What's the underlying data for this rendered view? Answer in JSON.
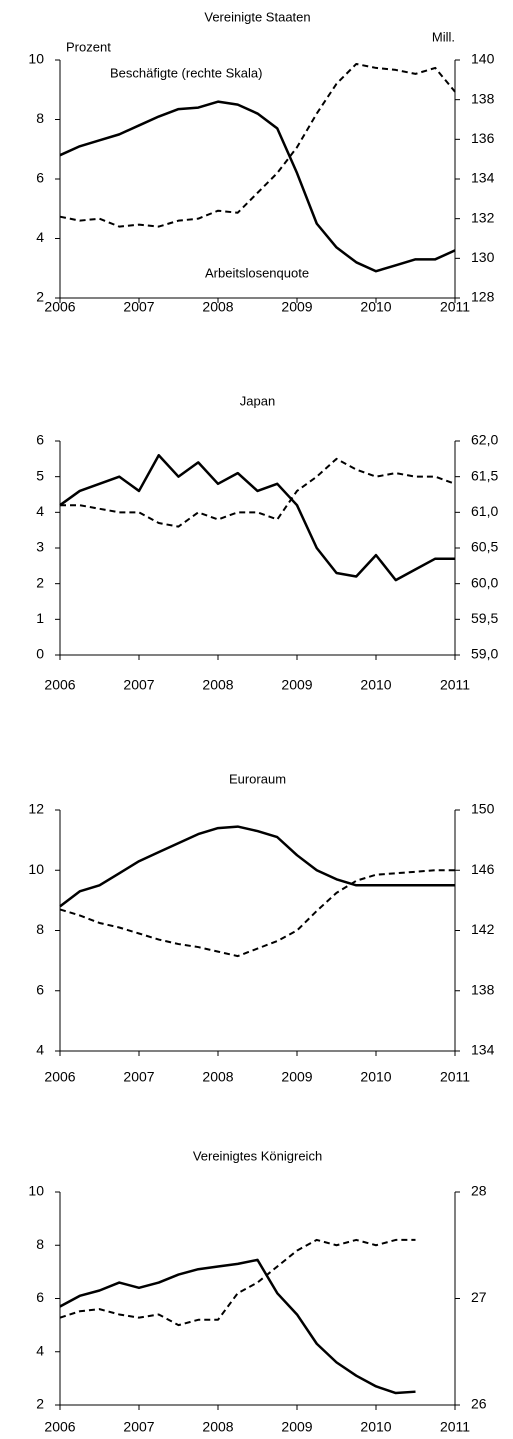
{
  "chart_data": [
    {
      "type": "line",
      "title": "Vereinigte Staaten",
      "annotations": [
        "Prozent",
        "Mill.",
        "Beschäfigte (rechte Skala)",
        "Arbeitslosenquote"
      ],
      "x": [
        2006,
        2006.25,
        2006.5,
        2006.75,
        2007,
        2007.25,
        2007.5,
        2007.75,
        2008,
        2008.25,
        2008.5,
        2008.75,
        2009,
        2009.25,
        2009.5,
        2009.75,
        2010,
        2010.25,
        2010.5,
        2010.75,
        2011
      ],
      "series": [
        {
          "color": "#000000",
          "style": "solid",
          "values": [
            6.8,
            7.1,
            7.3,
            7.5,
            7.8,
            8.1,
            8.35,
            8.4,
            8.6,
            8.5,
            8.2,
            7.7,
            6.2,
            4.5,
            3.7,
            3.2,
            2.9,
            3.1,
            3.3,
            3.3,
            3.6
          ]
        },
        {
          "color": "#000000",
          "style": "dashed",
          "axis": "y2",
          "values": [
            132.1,
            131.9,
            132.0,
            131.6,
            131.7,
            131.6,
            131.9,
            132.0,
            132.4,
            132.3,
            133.3,
            134.3,
            135.6,
            137.3,
            138.8,
            139.8,
            139.6,
            139.5,
            139.3,
            139.6,
            138.4
          ]
        }
      ],
      "xlim": [
        2006,
        2011
      ],
      "xticks": [
        2006,
        2007,
        2008,
        2009,
        2010,
        2011
      ],
      "ylim": [
        2,
        10
      ],
      "yticks": [
        2,
        4,
        6,
        8,
        10
      ],
      "y2lim": [
        128,
        140
      ],
      "y2ticks": [
        128,
        130,
        132,
        134,
        136,
        138,
        140
      ]
    },
    {
      "type": "line",
      "title": "Japan",
      "x": [
        2006,
        2006.25,
        2006.5,
        2006.75,
        2007,
        2007.25,
        2007.5,
        2007.75,
        2008,
        2008.25,
        2008.5,
        2008.75,
        2009,
        2009.25,
        2009.5,
        2009.75,
        2010,
        2010.25,
        2010.5,
        2010.75,
        2011
      ],
      "series": [
        {
          "color": "#000000",
          "style": "solid",
          "values": [
            4.2,
            4.6,
            4.8,
            5.0,
            4.6,
            5.6,
            5.0,
            5.4,
            4.8,
            5.1,
            4.6,
            4.8,
            4.2,
            3.0,
            2.3,
            2.2,
            2.8,
            2.1,
            2.4,
            2.7,
            2.7
          ]
        },
        {
          "color": "#000000",
          "style": "dashed",
          "axis": "y2",
          "values": [
            61.1,
            61.1,
            61.05,
            61.0,
            61.0,
            60.85,
            60.8,
            61.0,
            60.9,
            61.0,
            61.0,
            60.9,
            61.3,
            61.5,
            61.75,
            61.6,
            61.5,
            61.55,
            61.5,
            61.5,
            61.4
          ]
        }
      ],
      "xlim": [
        2006,
        2011
      ],
      "xticks": [
        2006,
        2007,
        2008,
        2009,
        2010,
        2011
      ],
      "ylim": [
        0,
        6
      ],
      "yticks": [
        0,
        1,
        2,
        3,
        4,
        5,
        6
      ],
      "y2lim": [
        59,
        62
      ],
      "y2ticks": [
        {
          "value": 59,
          "label": "59,0"
        },
        {
          "value": 59.5,
          "label": "59,5"
        },
        {
          "value": 60,
          "label": "60,0"
        },
        {
          "value": 60.5,
          "label": "60,5"
        },
        {
          "value": 61,
          "label": "61,0"
        },
        {
          "value": 61.5,
          "label": "61,5"
        },
        {
          "value": 62,
          "label": "62,0"
        }
      ]
    },
    {
      "type": "line",
      "title": "Euroraum",
      "x": [
        2006,
        2006.25,
        2006.5,
        2006.75,
        2007,
        2007.25,
        2007.5,
        2007.75,
        2008,
        2008.25,
        2008.5,
        2008.75,
        2009,
        2009.25,
        2009.5,
        2009.75,
        2010,
        2010.25,
        2010.5,
        2010.75,
        2011
      ],
      "series": [
        {
          "color": "#000000",
          "style": "solid",
          "values": [
            8.8,
            9.3,
            9.5,
            9.9,
            10.3,
            10.6,
            10.9,
            11.2,
            11.4,
            11.45,
            11.3,
            11.1,
            10.5,
            10.0,
            9.7,
            9.5,
            9.5,
            9.5,
            9.5,
            9.5,
            9.5
          ]
        },
        {
          "color": "#000000",
          "style": "dashed",
          "axis": "y2",
          "values": [
            143.4,
            143.0,
            142.5,
            142.2,
            141.8,
            141.4,
            141.1,
            140.9,
            140.6,
            140.3,
            140.8,
            141.3,
            142.0,
            143.3,
            144.5,
            145.3,
            145.7,
            145.8,
            145.9,
            146.0,
            146.0
          ]
        }
      ],
      "xlim": [
        2006,
        2011
      ],
      "xticks": [
        2006,
        2007,
        2008,
        2009,
        2010,
        2011
      ],
      "ylim": [
        4,
        12
      ],
      "yticks": [
        4,
        6,
        8,
        10,
        12
      ],
      "y2lim": [
        134,
        150
      ],
      "y2ticks": [
        134,
        138,
        142,
        146,
        150
      ]
    },
    {
      "type": "line",
      "title": "Vereinigtes Königreich",
      "x": [
        2006,
        2006.25,
        2006.5,
        2006.75,
        2007,
        2007.25,
        2007.5,
        2007.75,
        2008,
        2008.25,
        2008.5,
        2008.75,
        2009,
        2009.25,
        2009.5,
        2009.75,
        2010,
        2010.25,
        2010.5
      ],
      "series": [
        {
          "color": "#000000",
          "style": "solid",
          "values": [
            5.7,
            6.1,
            6.3,
            6.6,
            6.4,
            6.6,
            6.9,
            7.1,
            7.2,
            7.3,
            7.45,
            6.2,
            5.4,
            4.3,
            3.6,
            3.1,
            2.7,
            2.45,
            2.5
          ]
        },
        {
          "color": "#000000",
          "style": "dashed",
          "axis": "y2",
          "values": [
            26.82,
            26.88,
            26.9,
            26.85,
            26.82,
            26.85,
            26.75,
            26.8,
            26.8,
            27.05,
            27.15,
            27.3,
            27.45,
            27.55,
            27.5,
            27.55,
            27.5,
            27.55,
            27.55
          ]
        }
      ],
      "xlim": [
        2006,
        2011
      ],
      "xticks": [
        2006,
        2007,
        2008,
        2009,
        2010,
        2011
      ],
      "ylim": [
        2,
        10
      ],
      "yticks": [
        2,
        4,
        6,
        8,
        10
      ],
      "y2lim": [
        26,
        28
      ],
      "y2ticks": [
        26,
        27,
        28
      ]
    }
  ]
}
